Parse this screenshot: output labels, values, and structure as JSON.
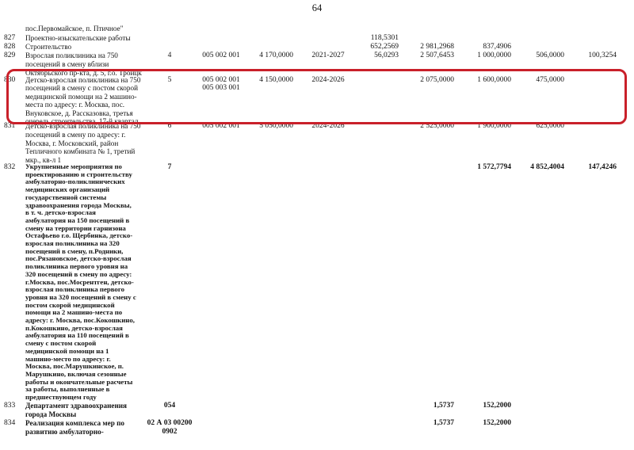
{
  "page": {
    "number": "64"
  },
  "highlight": {
    "color": "#c9202a"
  },
  "table": {
    "rows": [
      {
        "num": "",
        "desc": "пос.Первомайское, п. Птичное\""
      },
      {
        "num": "827",
        "desc": "Проектно-изыскательские работы",
        "v7": "118,5301"
      },
      {
        "num": "828",
        "desc": "Строительство",
        "v7": "652,2569",
        "v8": "2 981,2968",
        "v9": "837,4906"
      },
      {
        "num": "829",
        "desc": "Взрослая поликлиника на 750\nпосещений в смену вблизи\nОктябрьского пр-кта, д. 5, г.о. Троицк",
        "qty": "4",
        "dept": "005 002 001",
        "amount": "4 170,0000",
        "years": "2021-2027",
        "v7": "56,0293",
        "v8": "2 507,6453",
        "v9": "1 000,0000",
        "v10": "506,0000",
        "v11": "100,3254"
      },
      {
        "num": "830",
        "desc": "Детско-взрослая поликлиника на 750\nпосещений в смену с постом скорой\nмедицинской помощи на 2 машино-\nместа по адресу: г. Москва, пос.\nВнуковское, д. Рассказовка, третья\nочередь строительства, 17-й квартал",
        "qty": "5",
        "dept": "005 002 001\n005 003 001",
        "amount": "4 150,0000",
        "years": "2024-2026",
        "v8": "2 075,0000",
        "v9": "1 600,0000",
        "v10": "475,0000"
      },
      {
        "num": "831",
        "desc": "Детско-взрослая поликлиника на 750\nпосещений в смену по адресу: г.\nМосква, г. Московский, район\nТепличного комбината № 1, третий\nмкр., кв-л 1",
        "qty": "6",
        "dept": "005 002 001",
        "amount": "5 050,0000",
        "years": "2024-2026",
        "v8": "2 525,0000",
        "v9": "1 900,0000",
        "v10": "625,0000"
      },
      {
        "num": "832",
        "desc": "Укрупненные мероприятия по\nпроектированию и строительству\nамбулаторно-поликлинических\nмедицинских организаций\nгосударственной системы\nздравоохранения города Москвы,\nв т. ч. детско-взрослая\nамбулатория на 150 посещений в\nсмену на территории гарнизона\nОстафьево г.о. Щербинка, детско-\nвзрослая поликлиника на 320\nпосещений в смену, п.Родники,\nпос.Рязановское, детско-взрослая\nполиклиника первого уровня на\n320 посещений в смену по адресу:\nг.Москва, пос.Мосрентген, детско-\nвзрослая поликлиника первого\nуровня на 320 посещений в смену с\nпостом скорой медицинской\nпомощи на 2 машино-места по\nадресу: г. Москва, пос.Кокошкино,\nп.Кокошкино, детско-взрослая\nамбулатория на 110 посещений в\nсмену с постом скорой\nмедицинской помощи на 1\nмашино-место по адресу: г.\nМосква, пос.Марушкинское, п.\nМарушкино, включая сезонные\nработы и окончательные расчеты\nза работы, выполненные в\nпредшествующем году",
        "qty": "7",
        "v9": "1 572,7794",
        "v10": "4 852,4004",
        "v11": "147,4246"
      },
      {
        "num": "833",
        "desc": "Департамент здравоохранения\nгорода Москвы",
        "qty": "054",
        "v8": "1,5737",
        "v9": "152,2000"
      },
      {
        "num": "834",
        "desc": "Реализация комплекса мер по\nразвитию амбулаторно-",
        "qty": "02 А 03 00200\n0902",
        "v8": "1,5737",
        "v9": "152,2000"
      }
    ]
  }
}
